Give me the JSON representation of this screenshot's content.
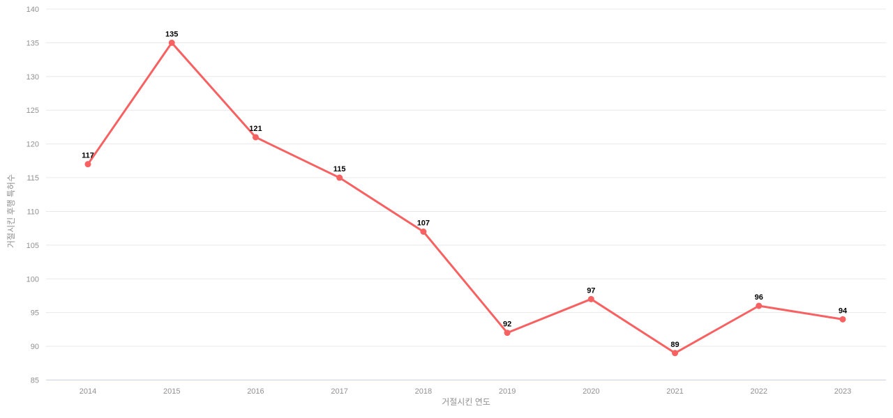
{
  "chart_data": {
    "type": "line",
    "title": "",
    "categories": [
      "2014",
      "2015",
      "2016",
      "2017",
      "2018",
      "2019",
      "2020",
      "2021",
      "2022",
      "2023"
    ],
    "series": [
      {
        "name": "거절시킨 후행 특허수",
        "values": [
          117,
          135,
          121,
          115,
          107,
          92,
          97,
          89,
          96,
          94
        ],
        "color": "#f86161"
      }
    ],
    "xlabel": "거절시킨 연도",
    "ylabel": "거절시킨 후행 특허수",
    "ylim": [
      85,
      140
    ],
    "yticks": [
      85,
      90,
      95,
      100,
      105,
      110,
      115,
      120,
      125,
      130,
      135,
      140
    ],
    "grid": true,
    "legend_position": "none",
    "data_labels_shown": true,
    "styles": {
      "background_color": "#ffffff",
      "grid_color": "#e8e8e8",
      "axis_baseline_color": "#c8d2e4",
      "tick_label_color": "#909090",
      "axis_title_color": "#909090",
      "data_label_color": "#000000",
      "line_width": 3,
      "marker_radius": 4.5,
      "tick_font_size": 11,
      "data_label_font_size": 11,
      "axis_title_font_size": 12
    }
  }
}
